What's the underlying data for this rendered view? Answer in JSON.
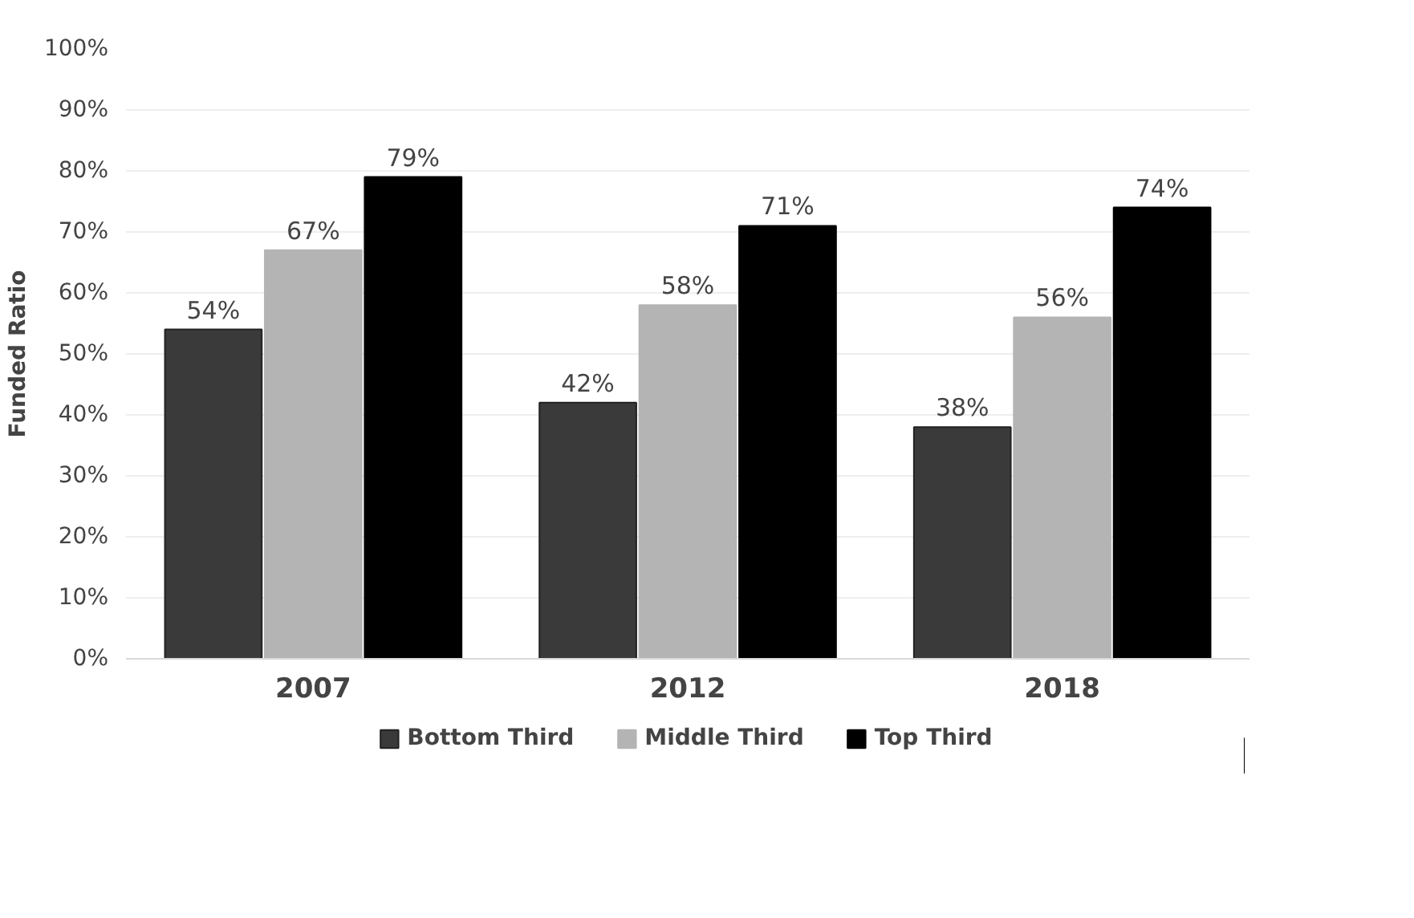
{
  "chart_data": {
    "type": "bar",
    "ylabel": "Funded Ratio",
    "categories": [
      "2007",
      "2012",
      "2018"
    ],
    "series": [
      {
        "name": "Bottom Third",
        "color": "#3a3a3a",
        "values": [
          54,
          42,
          38
        ],
        "value_labels": [
          "54%",
          "42%",
          "38%"
        ]
      },
      {
        "name": "Middle Third",
        "color": "#b4b4b4",
        "values": [
          67,
          58,
          56
        ],
        "value_labels": [
          "67%",
          "58%",
          "56%"
        ]
      },
      {
        "name": "Top Third",
        "color": "#000000",
        "values": [
          79,
          71,
          74
        ],
        "value_labels": [
          "79%",
          "71%",
          "74%"
        ]
      }
    ],
    "ylim": [
      0,
      100
    ],
    "yticks": [
      {
        "value": 0,
        "label": "0%"
      },
      {
        "value": 10,
        "label": "10%"
      },
      {
        "value": 20,
        "label": "20%"
      },
      {
        "value": 30,
        "label": "30%"
      },
      {
        "value": 40,
        "label": "40%"
      },
      {
        "value": 50,
        "label": "50%"
      },
      {
        "value": 60,
        "label": "60%"
      },
      {
        "value": 70,
        "label": "70%"
      },
      {
        "value": 80,
        "label": "80%"
      },
      {
        "value": 90,
        "label": "90%"
      },
      {
        "value": 100,
        "label": "100%"
      }
    ],
    "grid": "y",
    "legend": "bottom"
  }
}
